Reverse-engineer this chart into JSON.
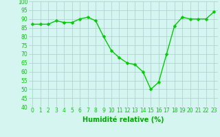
{
  "x": [
    0,
    1,
    2,
    3,
    4,
    5,
    6,
    7,
    8,
    9,
    10,
    11,
    12,
    13,
    14,
    15,
    16,
    17,
    18,
    19,
    20,
    21,
    22,
    23
  ],
  "y": [
    87,
    87,
    87,
    89,
    88,
    88,
    90,
    91,
    89,
    80,
    72,
    68,
    65,
    64,
    60,
    50,
    54,
    70,
    86,
    91,
    90,
    90,
    90,
    94
  ],
  "line_color": "#00cc00",
  "marker_color": "#00cc00",
  "bg_color": "#d4f5f0",
  "grid_color": "#aacccc",
  "xlabel": "Humidité relative (%)",
  "tick_color": "#00cc00",
  "xlabel_color": "#00aa00",
  "ylim": [
    40,
    100
  ],
  "yticks": [
    40,
    45,
    50,
    55,
    60,
    65,
    70,
    75,
    80,
    85,
    90,
    95,
    100
  ],
  "ytick_labels": [
    "40",
    "45",
    "50",
    "55",
    "60",
    "65",
    "70",
    "75",
    "80",
    "85",
    "90",
    "95",
    "100"
  ],
  "xticks": [
    0,
    1,
    2,
    3,
    4,
    5,
    6,
    7,
    8,
    9,
    10,
    11,
    12,
    13,
    14,
    15,
    16,
    17,
    18,
    19,
    20,
    21,
    22,
    23
  ],
  "tick_fontsize": 5.5,
  "xlabel_fontsize": 7,
  "line_width": 1.0,
  "marker_size": 2.5
}
